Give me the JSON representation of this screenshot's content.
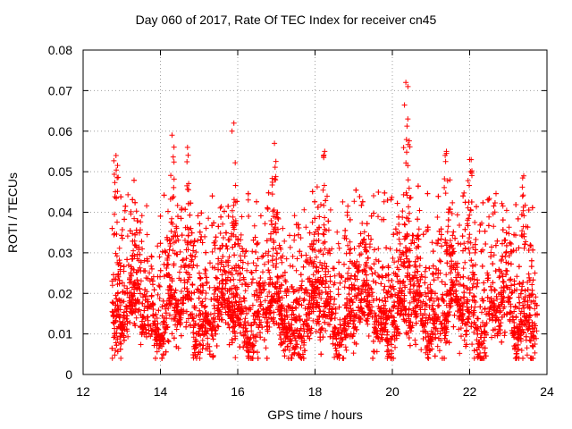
{
  "chart_data": {
    "type": "scatter",
    "title": "Day 060 of 2017, Rate Of TEC Index for receiver cn45",
    "xlabel": "GPS time / hours",
    "ylabel": "ROTI / TECUs",
    "xlim": [
      12,
      24
    ],
    "ylim": [
      0,
      0.08
    ],
    "xticks": [
      "12",
      "14",
      "16",
      "18",
      "20",
      "22",
      "24"
    ],
    "yticks": [
      "0",
      "0.01",
      "0.02",
      "0.03",
      "0.04",
      "0.05",
      "0.06",
      "0.07",
      "0.08"
    ],
    "grid": true,
    "marker": "+",
    "color": "#ff0000",
    "series": [
      {
        "name": "ROTI",
        "x_range": [
          12.75,
          23.75
        ],
        "typical_range": [
          0.005,
          0.045
        ],
        "peaks": [
          {
            "x": 12.85,
            "y": 0.054
          },
          {
            "x": 14.3,
            "y": 0.059
          },
          {
            "x": 14.7,
            "y": 0.056
          },
          {
            "x": 15.9,
            "y": 0.062
          },
          {
            "x": 16.95,
            "y": 0.057
          },
          {
            "x": 18.25,
            "y": 0.055
          },
          {
            "x": 20.35,
            "y": 0.072
          },
          {
            "x": 20.4,
            "y": 0.063
          },
          {
            "x": 21.4,
            "y": 0.055
          },
          {
            "x": 22.0,
            "y": 0.053
          },
          {
            "x": 23.4,
            "y": 0.049
          }
        ]
      }
    ]
  }
}
